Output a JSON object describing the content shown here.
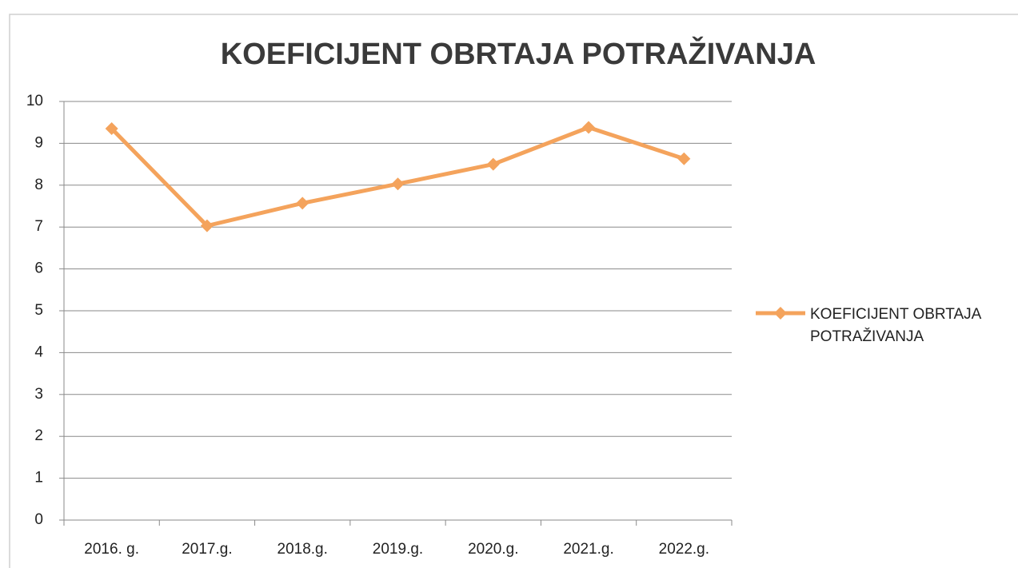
{
  "chart_data": {
    "type": "line",
    "title": "KOEFICIJENT OBRTAJA POTRAŽIVANJA",
    "categories": [
      "2016. g.",
      "2017.g.",
      "2018.g.",
      "2019.g.",
      "2020.g.",
      "2021.g.",
      "2022.g."
    ],
    "series": [
      {
        "name": "KOEFICIJENT OBRTAJA POTRAŽIVANJA",
        "color": "#f4a35c",
        "values": [
          9.35,
          7.03,
          7.57,
          8.03,
          8.5,
          9.38,
          8.63
        ]
      }
    ],
    "ylim": [
      0,
      10
    ],
    "yticks": [
      0,
      1,
      2,
      3,
      4,
      5,
      6,
      7,
      8,
      9,
      10
    ],
    "grid": true,
    "legend": "right"
  }
}
